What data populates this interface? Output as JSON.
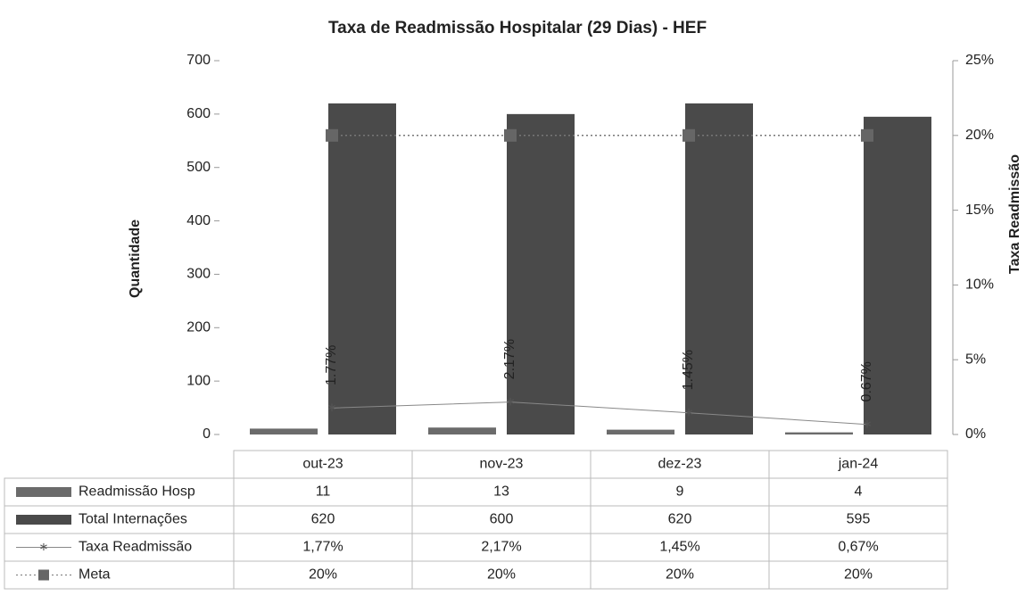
{
  "chart_data": {
    "type": "bar",
    "title": "Taxa de Readmissão Hospitalar (29 Dias) - HEF",
    "y_label": "Quantidade",
    "y2_label": "Taxa Readmissão",
    "categories": [
      "out-23",
      "nov-23",
      "dez-23",
      "jan-24"
    ],
    "series": [
      {
        "name": "Readmissão Hosp",
        "type": "bar",
        "color": "#6b6b6b",
        "values": [
          11,
          13,
          9,
          4
        ]
      },
      {
        "name": "Total Internações",
        "type": "bar",
        "color": "#4a4a4a",
        "values": [
          620,
          600,
          620,
          595
        ]
      },
      {
        "name": "Taxa Readmissão",
        "type": "line",
        "axis": "y2",
        "color": "#888888",
        "values": [
          1.77,
          2.17,
          1.45,
          0.67
        ],
        "value_labels": [
          "1.77%",
          "2.17%",
          "1.45%",
          "0.67%"
        ],
        "table_labels": [
          "1,77%",
          "2,17%",
          "1,45%",
          "0,67%"
        ]
      },
      {
        "name": "Meta",
        "type": "line",
        "axis": "y2",
        "color": "#777777",
        "dash": true,
        "values": [
          20,
          20,
          20,
          20
        ],
        "table_labels": [
          "20%",
          "20%",
          "20%",
          "20%"
        ]
      }
    ],
    "ylim": [
      0,
      700
    ],
    "yticks": [
      0,
      100,
      200,
      300,
      400,
      500,
      600,
      700
    ],
    "y2lim": [
      0,
      25
    ],
    "y2ticks": [
      {
        "value": 0,
        "label": "0%"
      },
      {
        "value": 5,
        "label": "5%"
      },
      {
        "value": 10,
        "label": "10%"
      },
      {
        "value": 15,
        "label": "15%"
      },
      {
        "value": 20,
        "label": "20%"
      },
      {
        "value": 25,
        "label": "25%"
      }
    ]
  }
}
